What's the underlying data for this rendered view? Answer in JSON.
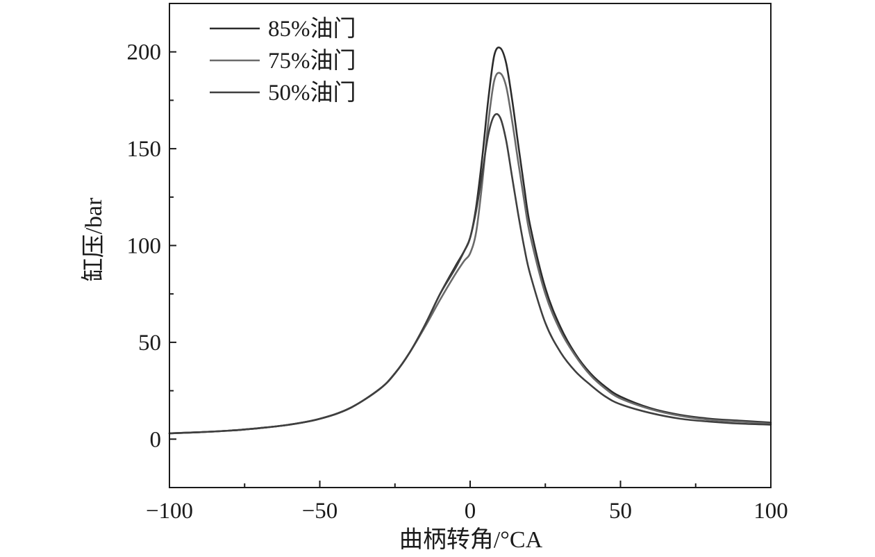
{
  "chart_data": {
    "type": "line",
    "title": "",
    "xlabel": "曲柄转角/°CA",
    "ylabel": "缸压/bar",
    "xlim": [
      -100,
      100
    ],
    "ylim": [
      -25,
      225
    ],
    "xticks": [
      -100,
      -50,
      0,
      50,
      100
    ],
    "xtick_labels": [
      "−100",
      "−50",
      "0",
      "50",
      "100"
    ],
    "yticks": [
      0,
      50,
      100,
      150,
      200
    ],
    "ytick_labels": [
      "0",
      "50",
      "100",
      "150",
      "200"
    ],
    "grid": false,
    "legend_position": "top-left",
    "series": [
      {
        "name": "85%油门",
        "color": "#2b2b2b",
        "x": [
          -100,
          -90,
          -80,
          -70,
          -60,
          -50,
          -40,
          -30,
          -25,
          -20,
          -15,
          -10,
          -5,
          -2,
          0,
          2,
          4,
          6,
          8,
          10,
          12,
          14,
          16,
          18,
          20,
          25,
          30,
          35,
          40,
          45,
          50,
          60,
          70,
          80,
          90,
          100
        ],
        "y": [
          3,
          3.6,
          4.4,
          5.7,
          7.5,
          10.5,
          16,
          26,
          34,
          45,
          59,
          75,
          89,
          97,
          104,
          120,
          145,
          175,
          198,
          202,
          194,
          175,
          152,
          130,
          110,
          78,
          58,
          44,
          34,
          27,
          22,
          16,
          12.5,
          10.5,
          9.5,
          8.5
        ]
      },
      {
        "name": "75%油门",
        "color": "#6a6a6a",
        "x": [
          -100,
          -90,
          -80,
          -70,
          -60,
          -50,
          -40,
          -30,
          -25,
          -20,
          -15,
          -10,
          -5,
          -2,
          0,
          2,
          4,
          6,
          8,
          10,
          12,
          14,
          16,
          18,
          20,
          25,
          30,
          35,
          40,
          45,
          50,
          60,
          70,
          80,
          90,
          100
        ],
        "y": [
          3,
          3.6,
          4.4,
          5.7,
          7.5,
          10.5,
          16,
          26,
          34,
          45,
          58,
          72,
          85,
          92,
          96,
          107,
          132,
          163,
          185,
          189,
          182,
          164,
          143,
          123,
          105,
          75,
          56,
          43,
          33,
          26,
          21,
          15.5,
          12,
          10,
          9,
          8
        ]
      },
      {
        "name": "50%油门",
        "color": "#3f3f3f",
        "x": [
          -100,
          -90,
          -80,
          -70,
          -60,
          -50,
          -40,
          -30,
          -25,
          -20,
          -15,
          -10,
          -5,
          -2,
          0,
          2,
          4,
          6,
          8,
          10,
          12,
          14,
          16,
          18,
          20,
          25,
          30,
          35,
          40,
          45,
          50,
          60,
          70,
          80,
          90,
          100
        ],
        "y": [
          3,
          3.6,
          4.4,
          5.7,
          7.5,
          10.5,
          16,
          26,
          34,
          45,
          59,
          75,
          88,
          97,
          104,
          118,
          137,
          157,
          167,
          166,
          154,
          135,
          116,
          99,
          85,
          60,
          45,
          35,
          28,
          22,
          18,
          13.5,
          10.5,
          9,
          8,
          7.5
        ]
      }
    ]
  }
}
